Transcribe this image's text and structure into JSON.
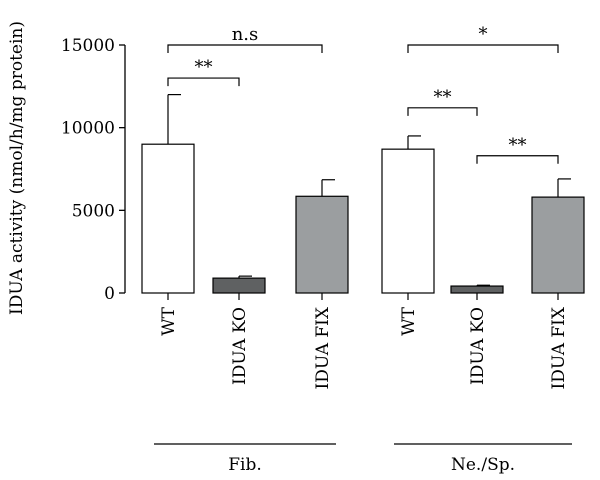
{
  "chart_data": {
    "type": "bar",
    "ylabel": "IDUA activity (nmol/h/mg protein)",
    "ylim": [
      0,
      15000
    ],
    "yticks": [
      0,
      5000,
      10000,
      15000
    ],
    "categories": [
      "WT",
      "IDUA KO",
      "IDUA FIX",
      "WT",
      "IDUA KO",
      "IDUA FIX"
    ],
    "values": [
      9000,
      900,
      5850,
      8700,
      420,
      5800
    ],
    "errors": [
      3000,
      120,
      1000,
      800,
      50,
      1100
    ],
    "colors": [
      "#ffffff",
      "#5f6162",
      "#9b9ea0",
      "#ffffff",
      "#5f6162",
      "#9b9ea0"
    ],
    "groups": [
      {
        "label": "Fib.",
        "bar_indices": [
          0,
          1,
          2
        ]
      },
      {
        "label": "Ne./Sp.",
        "bar_indices": [
          3,
          4,
          5
        ]
      }
    ],
    "significance": [
      {
        "from": 0,
        "to": 1,
        "label": "**",
        "y": 13000
      },
      {
        "from": 0,
        "to": 2,
        "label": "n.s",
        "y": 15000
      },
      {
        "from": 3,
        "to": 4,
        "label": "**",
        "y": 11200
      },
      {
        "from": 4,
        "to": 5,
        "label": "**",
        "y": 8300
      },
      {
        "from": 3,
        "to": 5,
        "label": "*",
        "y": 15000
      }
    ],
    "grid": false,
    "legend": "none"
  }
}
